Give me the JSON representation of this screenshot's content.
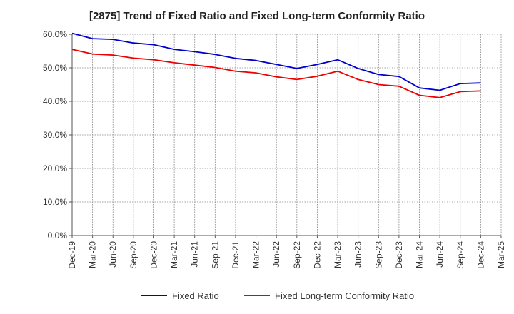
{
  "chart_data": {
    "type": "line",
    "title": "[2875]  Trend of Fixed Ratio and Fixed Long-term Conformity Ratio",
    "xlabel": "",
    "ylabel": "",
    "ylim": [
      0,
      60
    ],
    "yticks": [
      "0.0%",
      "10.0%",
      "20.0%",
      "30.0%",
      "40.0%",
      "50.0%",
      "60.0%"
    ],
    "x": [
      "Dec-19",
      "Mar-20",
      "Jun-20",
      "Sep-20",
      "Dec-20",
      "Mar-21",
      "Jun-21",
      "Sep-21",
      "Dec-21",
      "Mar-22",
      "Jun-22",
      "Sep-22",
      "Dec-22",
      "Mar-23",
      "Jun-23",
      "Sep-23",
      "Dec-23",
      "Mar-24",
      "Jun-24",
      "Sep-24",
      "Dec-24",
      "Mar-25"
    ],
    "grid": true,
    "legend_position": "bottom",
    "series": [
      {
        "name": "Fixed Ratio",
        "color": "#0000cc",
        "values": [
          60.3,
          58.7,
          58.5,
          57.4,
          56.9,
          55.5,
          54.8,
          54.0,
          52.8,
          52.2,
          51.0,
          49.8,
          51.0,
          52.4,
          49.8,
          48.0,
          47.4,
          44.0,
          43.3,
          45.3,
          45.5,
          null
        ]
      },
      {
        "name": "Fixed Long-term Conformity Ratio",
        "color": "#ee0000",
        "values": [
          55.5,
          54.1,
          53.8,
          52.9,
          52.4,
          51.5,
          50.8,
          50.1,
          49.0,
          48.5,
          47.3,
          46.5,
          47.5,
          49.0,
          46.5,
          45.0,
          44.5,
          41.8,
          41.1,
          42.9,
          43.1,
          null
        ]
      }
    ]
  }
}
